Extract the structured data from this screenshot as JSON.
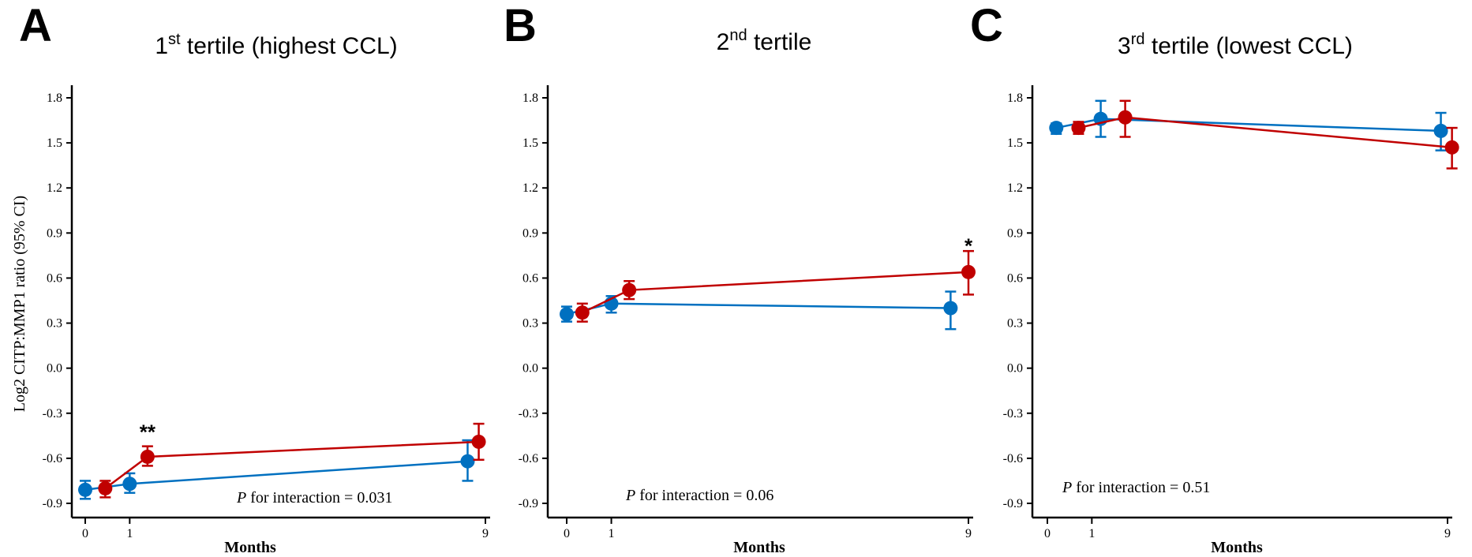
{
  "colors": {
    "blue": "#0070C0",
    "red": "#C00000",
    "axis": "#000000"
  },
  "y_axis_label": "Log2 CITP:MMP1 ratio (95% CI)",
  "x_axis_label": "Months",
  "chart_data": [
    {
      "type": "line",
      "panel_letter": "A",
      "title": "1st tertile  (highest CCL)",
      "title_parts": {
        "num": "1",
        "sup": "st",
        "rest": " tertile  (highest CCL)"
      },
      "xlabel": "Months",
      "ylabel": "Log2 CITP:MMP1 ratio (95% CI)",
      "ylim": [
        -0.9,
        1.8
      ],
      "y_ticks": [
        "1.8",
        "1.5",
        "1.2",
        "0.9",
        "0.6",
        "0.3",
        "0.0",
        "-0.3",
        "-0.6",
        "-0.9"
      ],
      "x_ticks": [
        {
          "label": "0",
          "value": 0
        },
        {
          "label": "1",
          "value": 1
        },
        {
          "label": "9",
          "value": 9
        }
      ],
      "annotation": {
        "p": "P",
        "text": " for interaction = 0.031"
      },
      "series": [
        {
          "color": "blue",
          "points": [
            {
              "x": 0.0,
              "y": -0.81,
              "lo": -0.87,
              "hi": -0.75
            },
            {
              "x": 1.0,
              "y": -0.77,
              "lo": -0.83,
              "hi": -0.7
            },
            {
              "x": 8.6,
              "y": -0.62,
              "lo": -0.75,
              "hi": -0.48
            }
          ]
        },
        {
          "color": "red",
          "points": [
            {
              "x": 0.45,
              "y": -0.8,
              "lo": -0.86,
              "hi": -0.75
            },
            {
              "x": 1.4,
              "y": -0.59,
              "lo": -0.65,
              "hi": -0.52
            },
            {
              "x": 8.85,
              "y": -0.49,
              "lo": -0.61,
              "hi": -0.37
            }
          ]
        }
      ],
      "significance": [
        {
          "label": "**",
          "x": 1.4,
          "y": -0.42
        }
      ]
    },
    {
      "type": "line",
      "panel_letter": "B",
      "title": "2nd tertile",
      "title_parts": {
        "num": "2",
        "sup": "nd",
        "rest": " tertile"
      },
      "xlabel": "Months",
      "ylabel": "",
      "ylim": [
        -0.9,
        1.8
      ],
      "y_ticks": [
        "1.8",
        "1.5",
        "1.2",
        "0.9",
        "0.6",
        "0.3",
        "0.0",
        "-0.3",
        "-0.6",
        "-0.9"
      ],
      "x_ticks": [
        {
          "label": "0",
          "value": 0
        },
        {
          "label": "1",
          "value": 1
        },
        {
          "label": "9",
          "value": 9
        }
      ],
      "annotation": {
        "p": "P",
        "text": " for interaction = 0.06"
      },
      "series": [
        {
          "color": "blue",
          "points": [
            {
              "x": 0.0,
              "y": 0.36,
              "lo": 0.31,
              "hi": 0.41
            },
            {
              "x": 1.0,
              "y": 0.43,
              "lo": 0.37,
              "hi": 0.48
            },
            {
              "x": 8.6,
              "y": 0.4,
              "lo": 0.26,
              "hi": 0.51
            }
          ]
        },
        {
          "color": "red",
          "points": [
            {
              "x": 0.35,
              "y": 0.37,
              "lo": 0.31,
              "hi": 0.43
            },
            {
              "x": 1.4,
              "y": 0.52,
              "lo": 0.46,
              "hi": 0.58
            },
            {
              "x": 9.0,
              "y": 0.64,
              "lo": 0.49,
              "hi": 0.78
            }
          ]
        }
      ],
      "significance": [
        {
          "label": "*",
          "x": 9.0,
          "y": 0.82
        }
      ]
    },
    {
      "type": "line",
      "panel_letter": "C",
      "title": "3rd tertile (lowest CCL)",
      "title_parts": {
        "num": "3",
        "sup": "rd",
        "rest": " tertile (lowest CCL)"
      },
      "xlabel": "Months",
      "ylabel": "",
      "ylim": [
        -0.9,
        1.8
      ],
      "y_ticks": [
        "1.8",
        "1.5",
        "1.2",
        "0.9",
        "0.6",
        "0.3",
        "0.0",
        "-0.3",
        "-0.6",
        "-0.9"
      ],
      "x_ticks": [
        {
          "label": "0",
          "value": 0
        },
        {
          "label": "1",
          "value": 1
        },
        {
          "label": "9",
          "value": 9
        }
      ],
      "annotation": {
        "p": "P",
        "text": " for interaction = 0.51"
      },
      "series": [
        {
          "color": "blue",
          "points": [
            {
              "x": 0.2,
              "y": 1.6,
              "lo": 1.56,
              "hi": 1.63
            },
            {
              "x": 1.2,
              "y": 1.66,
              "lo": 1.54,
              "hi": 1.78
            },
            {
              "x": 8.85,
              "y": 1.58,
              "lo": 1.45,
              "hi": 1.7
            }
          ]
        },
        {
          "color": "red",
          "points": [
            {
              "x": 0.7,
              "y": 1.6,
              "lo": 1.56,
              "hi": 1.64
            },
            {
              "x": 1.75,
              "y": 1.67,
              "lo": 1.54,
              "hi": 1.78
            },
            {
              "x": 9.1,
              "y": 1.47,
              "lo": 1.33,
              "hi": 1.6
            }
          ]
        }
      ],
      "significance": []
    }
  ]
}
